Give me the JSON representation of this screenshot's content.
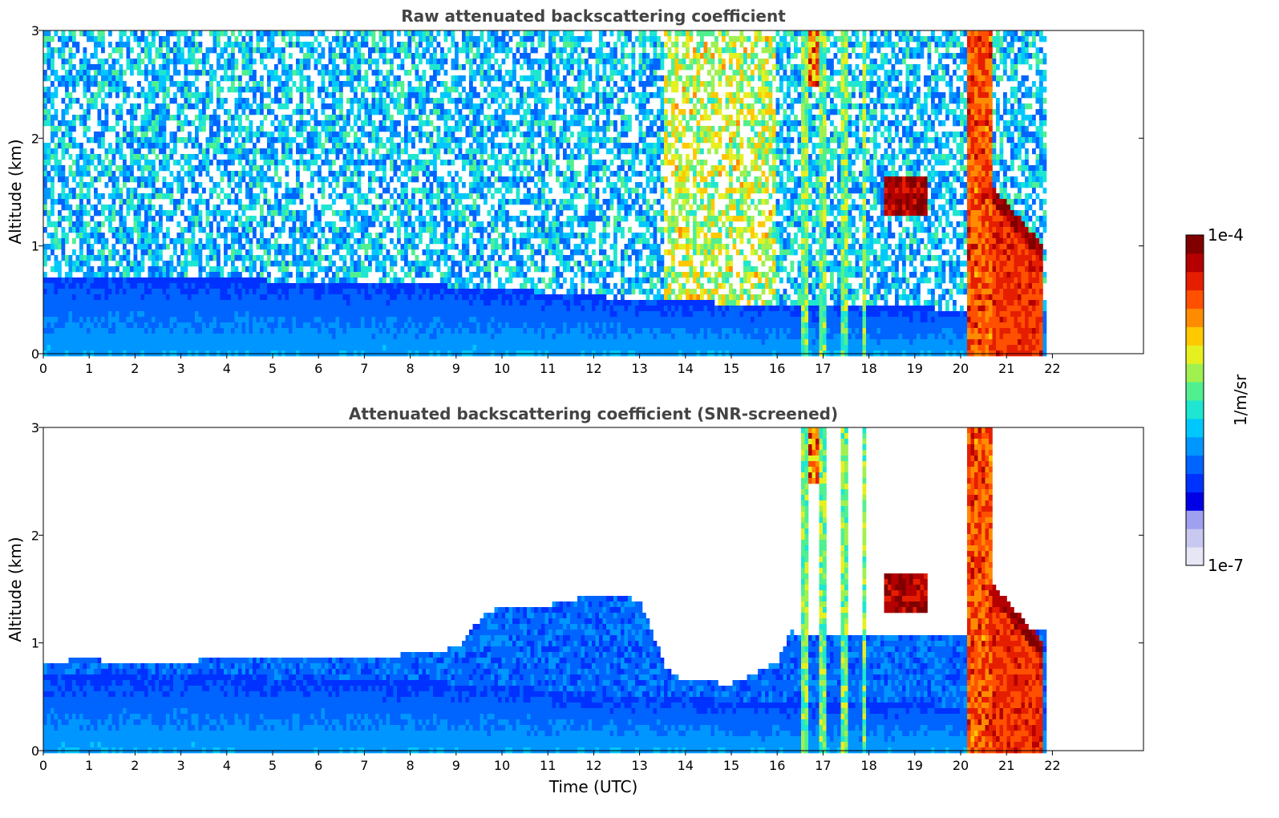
{
  "chart_data": [
    {
      "type": "heatmap",
      "title": "Raw attenuated backscattering coefficient",
      "xlabel": "",
      "ylabel": "Altitude (km)",
      "xlim": [
        0,
        24
      ],
      "ylim": [
        0,
        3
      ],
      "xticks": [
        0,
        1,
        2,
        3,
        4,
        5,
        6,
        7,
        8,
        9,
        10,
        11,
        12,
        13,
        14,
        15,
        16,
        17,
        18,
        19,
        20,
        21,
        22
      ],
      "yticks": [
        0,
        1,
        2,
        3
      ],
      "data_end_hour": 21.8,
      "features": [
        {
          "kind": "boundary_layer",
          "top_km_by_hour": [
            [
              0,
              0.7
            ],
            [
              3,
              0.7
            ],
            [
              8,
              0.65
            ],
            [
              10,
              0.6
            ],
            [
              13,
              0.5
            ],
            [
              16,
              0.45
            ],
            [
              21.8,
              0.4
            ]
          ]
        },
        {
          "kind": "precipitation_columns",
          "hours": [
            16.6,
            17.0,
            17.45,
            17.9,
            20.2
          ],
          "top_km": 3.0
        },
        {
          "kind": "cloud",
          "hour_range": [
            18.3,
            19.3
          ],
          "alt_km": [
            1.3,
            1.65
          ]
        },
        {
          "kind": "cloud_deck",
          "hour_range": [
            20.7,
            21.8
          ],
          "alt_km": [
            0.0,
            1.4
          ]
        }
      ]
    },
    {
      "type": "heatmap",
      "title": "Attenuated backscattering coefficient (SNR-screened)",
      "xlabel": "Time (UTC)",
      "ylabel": "Altitude (km)",
      "xlim": [
        0,
        24
      ],
      "ylim": [
        0,
        3
      ],
      "xticks": [
        0,
        1,
        2,
        3,
        4,
        5,
        6,
        7,
        8,
        9,
        10,
        11,
        12,
        13,
        14,
        15,
        16,
        17,
        18,
        19,
        20,
        21,
        22
      ],
      "yticks": [
        0,
        1,
        2,
        3
      ],
      "data_end_hour": 21.8,
      "screened_top_km_by_hour": [
        [
          0,
          0.82
        ],
        [
          1,
          0.85
        ],
        [
          2,
          0.8
        ],
        [
          3,
          0.83
        ],
        [
          4,
          0.85
        ],
        [
          5,
          0.87
        ],
        [
          6,
          0.86
        ],
        [
          7,
          0.85
        ],
        [
          8,
          0.9
        ],
        [
          9,
          0.95
        ],
        [
          9.7,
          1.3
        ],
        [
          11,
          1.35
        ],
        [
          12,
          1.45
        ],
        [
          13,
          1.4
        ],
        [
          13.6,
          0.75
        ],
        [
          14,
          0.65
        ],
        [
          15,
          0.62
        ],
        [
          16,
          0.82
        ],
        [
          16.3,
          1.1
        ],
        [
          18.2,
          1.05
        ],
        [
          20.2,
          1.1
        ]
      ]
    }
  ],
  "colorbar": {
    "label": "1/m/sr",
    "max_label": "1e-4",
    "min_label": "1e-7",
    "colors": [
      "#e6e6f5",
      "#c8c8f0",
      "#a0a0f0",
      "#0000e6",
      "#0032ff",
      "#0064ff",
      "#0096ff",
      "#00c8ff",
      "#1ee6d0",
      "#50f090",
      "#a0f050",
      "#e6f020",
      "#ffc800",
      "#ff8c00",
      "#ff5000",
      "#e61e00",
      "#b40000",
      "#800000"
    ]
  }
}
